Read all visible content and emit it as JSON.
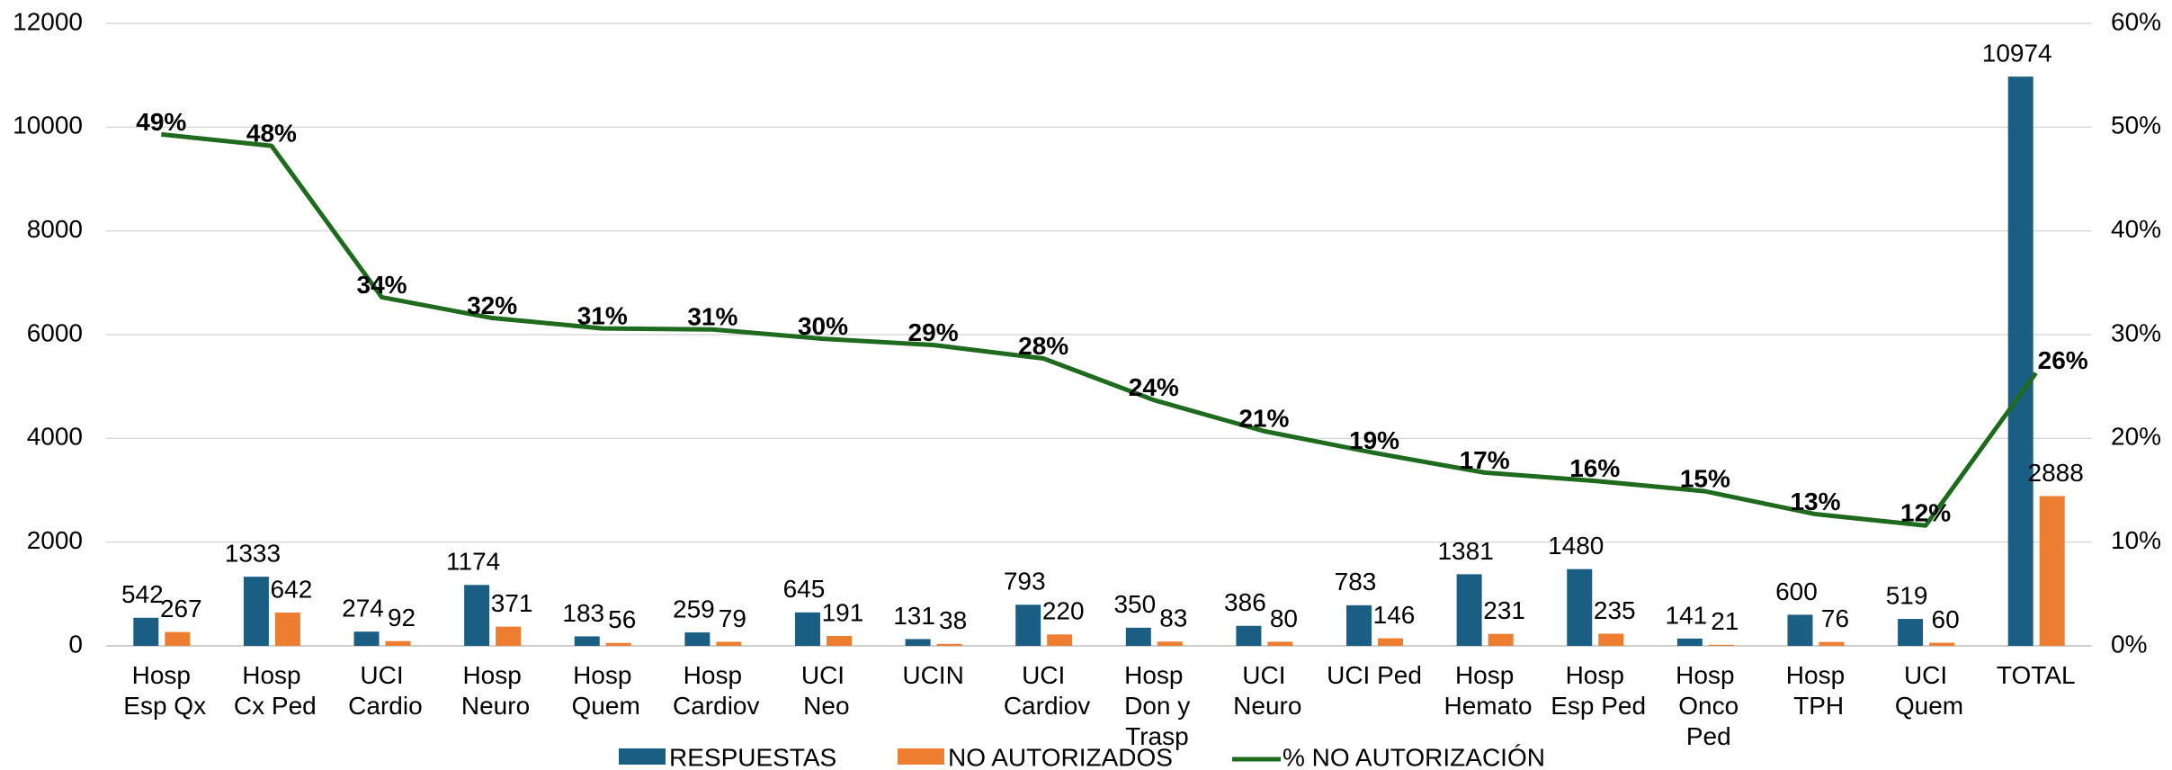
{
  "chart_data": {
    "type": "bar_line",
    "categories": [
      "Hosp Esp Qx",
      "Hosp Cx Ped",
      "UCI Cardio",
      "Hosp Neuro",
      "Hosp Quem",
      "Hosp Cardiov",
      "UCI Neo",
      "UCIN",
      "UCI Cardiov",
      "Hosp Don y Trasp",
      "UCI Neuro",
      "UCI Ped",
      "Hosp Hemato",
      "Hosp Esp Ped",
      "Hosp Onco Ped",
      "Hosp TPH",
      "UCI Quem",
      "TOTAL"
    ],
    "series": [
      {
        "name": "RESPUESTAS",
        "type": "bar",
        "color": "#1b5e84",
        "values": [
          542,
          1333,
          274,
          1174,
          183,
          259,
          645,
          131,
          793,
          350,
          386,
          783,
          1381,
          1480,
          141,
          600,
          519,
          10974
        ]
      },
      {
        "name": "NO AUTORIZADOS",
        "type": "bar",
        "color": "#ed7d31",
        "values": [
          267,
          642,
          92,
          371,
          56,
          79,
          191,
          38,
          220,
          83,
          80,
          146,
          231,
          235,
          21,
          76,
          60,
          2888
        ]
      },
      {
        "name": "% NO AUTORIZACIÓN",
        "type": "line",
        "axis": "y2",
        "color": "#1e6b1e",
        "values": [
          49.3,
          48.2,
          33.6,
          31.6,
          30.6,
          30.5,
          29.6,
          29.0,
          27.7,
          23.7,
          20.7,
          18.6,
          16.7,
          15.9,
          14.9,
          12.7,
          11.6,
          26.3
        ],
        "value_labels": [
          "49%",
          "48%",
          "34%",
          "32%",
          "31%",
          "31%",
          "30%",
          "29%",
          "28%",
          "24%",
          "21%",
          "19%",
          "17%",
          "16%",
          "15%",
          "13%",
          "12%",
          "26%"
        ]
      }
    ],
    "ylim": [
      0,
      12000
    ],
    "yticks": [
      0,
      2000,
      4000,
      6000,
      8000,
      10000,
      12000
    ],
    "y2lim": [
      0,
      60
    ],
    "y2ticks": [
      {
        "value": 0,
        "label": "0%"
      },
      {
        "value": 10,
        "label": "10%"
      },
      {
        "value": 20,
        "label": "20%"
      },
      {
        "value": 30,
        "label": "30%"
      },
      {
        "value": 40,
        "label": "40%"
      },
      {
        "value": 50,
        "label": "50%"
      },
      {
        "value": 60,
        "label": "60%"
      }
    ],
    "grid": true,
    "legend": "bottom"
  }
}
